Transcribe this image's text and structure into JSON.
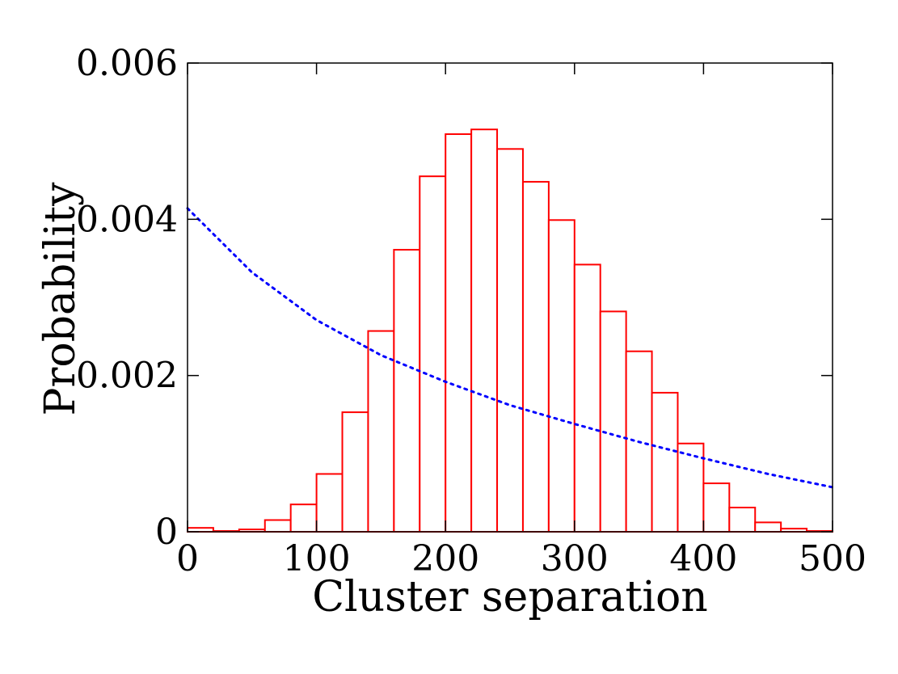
{
  "chart_data": {
    "type": "bar",
    "xlabel": "Cluster separation",
    "ylabel": "Probability",
    "xlim": [
      0,
      500
    ],
    "ylim": [
      0,
      0.006
    ],
    "x_ticks": [
      {
        "value": 0,
        "label": "0"
      },
      {
        "value": 100,
        "label": "100"
      },
      {
        "value": 200,
        "label": "200"
      },
      {
        "value": 300,
        "label": "300"
      },
      {
        "value": 400,
        "label": "400"
      },
      {
        "value": 500,
        "label": "500"
      }
    ],
    "y_ticks": [
      {
        "value": 0,
        "label": "0"
      },
      {
        "value": 0.002,
        "label": "0.002"
      },
      {
        "value": 0.004,
        "label": "0.004"
      },
      {
        "value": 0.006,
        "label": "0.006"
      }
    ],
    "grid": false,
    "histogram": {
      "bin_edges": [
        0,
        20,
        40,
        60,
        80,
        100,
        120,
        140,
        160,
        180,
        200,
        220,
        240,
        260,
        280,
        300,
        320,
        340,
        360,
        380,
        400,
        420,
        440,
        460,
        480,
        500
      ],
      "values": [
        5e-05,
        1e-05,
        3e-05,
        0.00015,
        0.00035,
        0.00074,
        0.00153,
        0.00257,
        0.00361,
        0.00455,
        0.00509,
        0.00515,
        0.0049,
        0.00448,
        0.00399,
        0.00342,
        0.00282,
        0.00231,
        0.00178,
        0.00113,
        0.00062,
        0.00031,
        0.00012,
        4e-05,
        1e-05
      ],
      "edge_color": "#ff0000",
      "fill_color": "#ffffff"
    },
    "curve": {
      "style": "dotted",
      "color": "#0000ff",
      "x": [
        0,
        50,
        100,
        150,
        200,
        250,
        300,
        350,
        400,
        450,
        500
      ],
      "y": [
        0.00414,
        0.00332,
        0.00271,
        0.00226,
        0.00192,
        0.00162,
        0.00138,
        0.00115,
        0.00094,
        0.00074,
        0.00057
      ]
    }
  }
}
